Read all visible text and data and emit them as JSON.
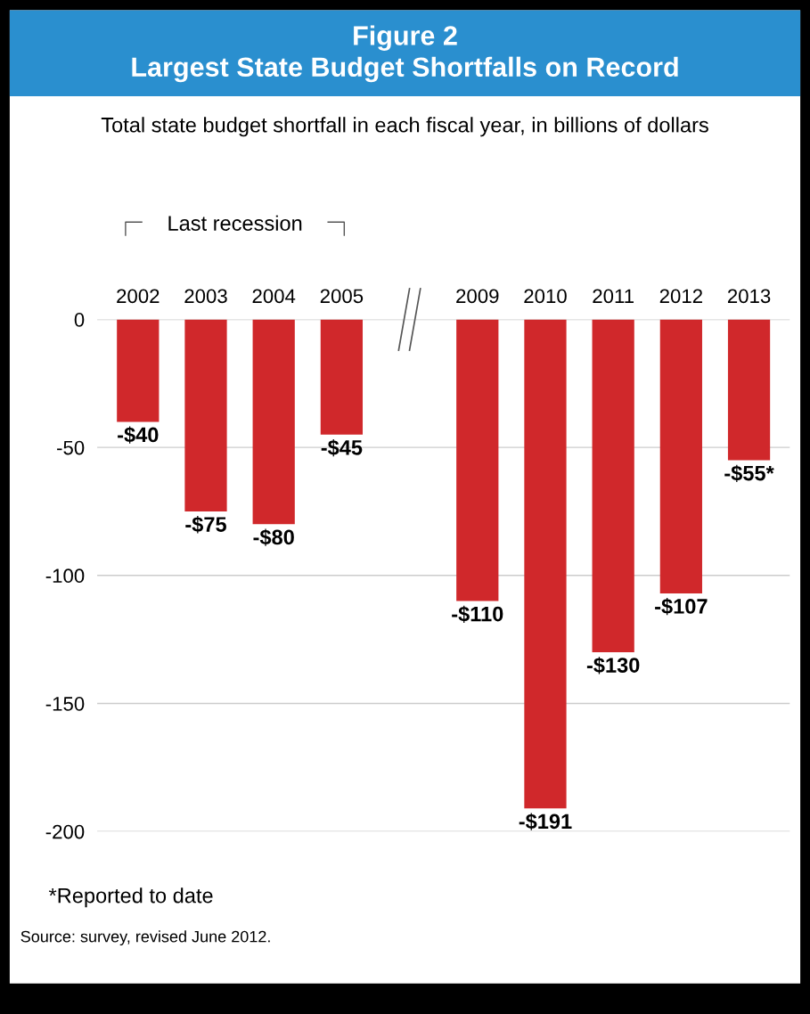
{
  "chart_data": {
    "type": "bar",
    "title": "Figure 2\nLargest State Budget Shortfalls on Record",
    "subtitle": "Total state budget shortfall in each fiscal year, in billions of dollars",
    "categories": [
      "2002",
      "2003",
      "2004",
      "2005",
      null,
      "2009",
      "2010",
      "2011",
      "2012",
      "2013"
    ],
    "values": [
      -40,
      -75,
      -80,
      -45,
      null,
      -110,
      -191,
      -130,
      -107,
      -55
    ],
    "value_labels": [
      "-$40",
      "-$75",
      "-$80",
      "-$45",
      null,
      "-$110",
      "-$191",
      "-$130",
      "-$107",
      "-$55*"
    ],
    "color": "#d0282b",
    "ylim": [
      -200,
      0
    ],
    "yticks": [
      0,
      -50,
      -100,
      -150,
      -200
    ],
    "grid": "y",
    "annotations": [
      "Last recession",
      "*Reported to date",
      "Source: survey, revised June 2012."
    ]
  }
}
